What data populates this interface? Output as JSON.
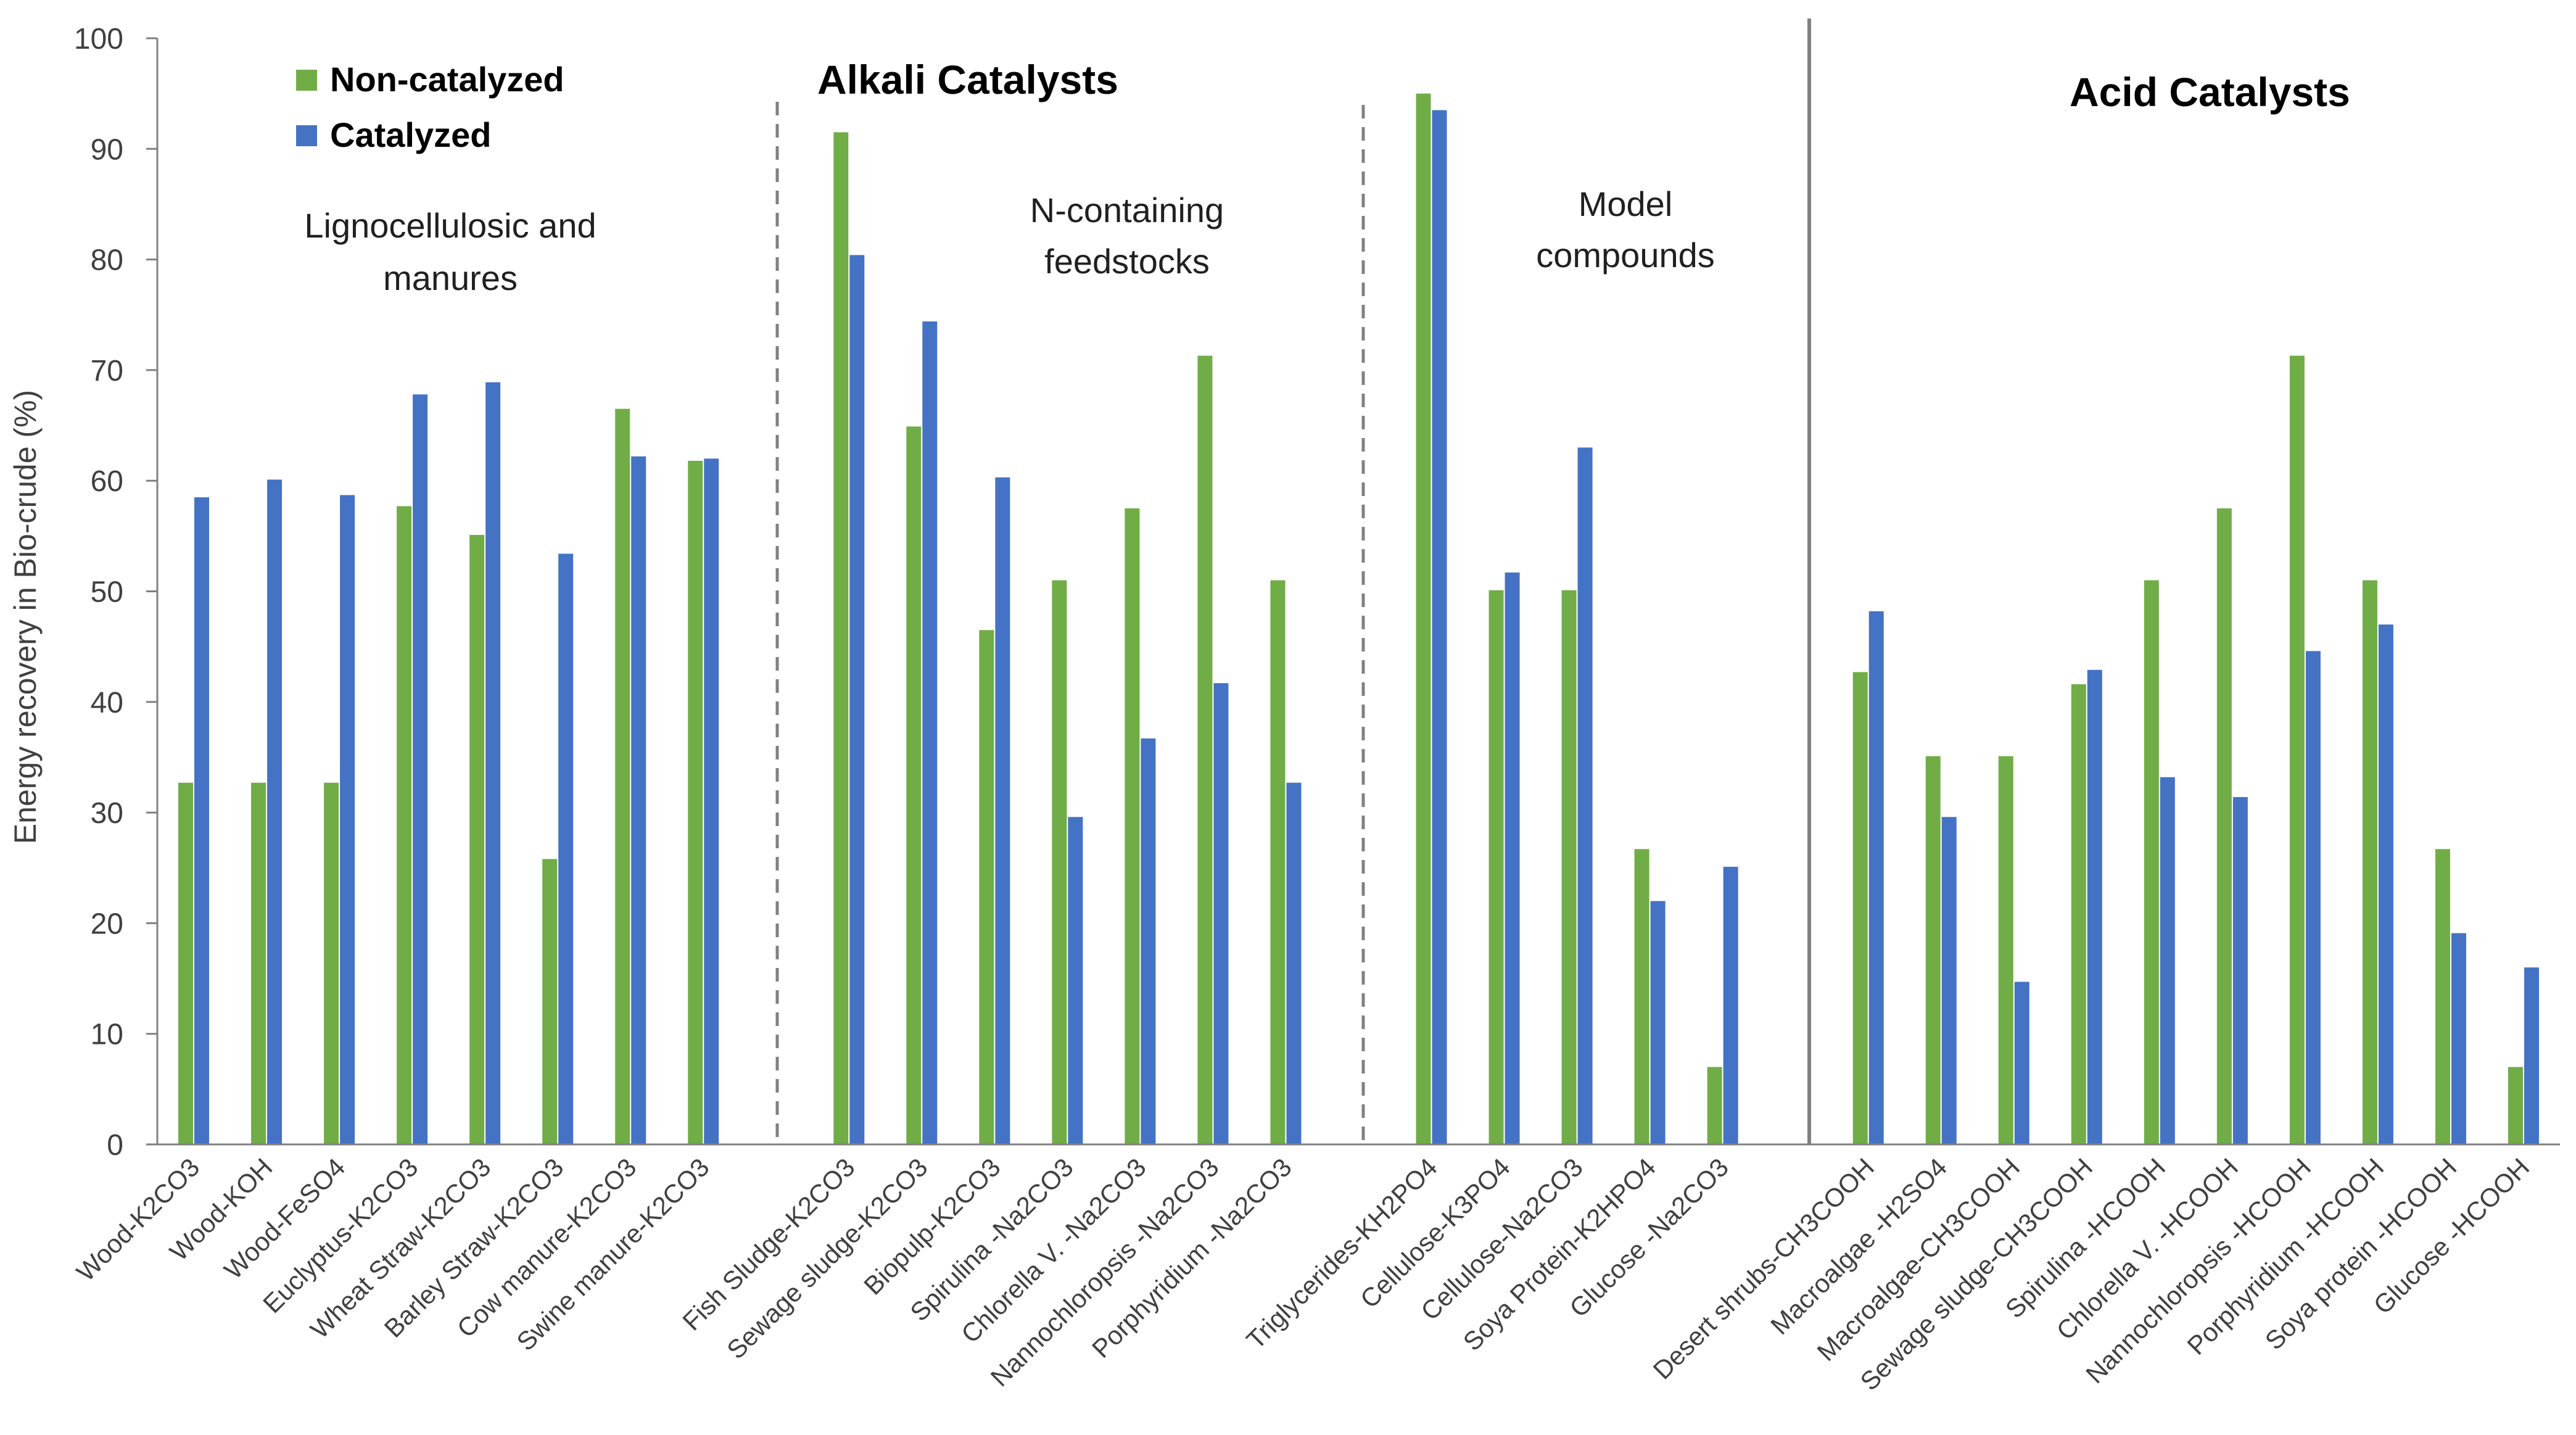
{
  "chart_data": {
    "type": "bar",
    "title": "",
    "xlabel": "",
    "ylabel": "Energy recovery in Bio-crude (%)",
    "ylim": [
      0,
      100
    ],
    "yticks": [
      0,
      10,
      20,
      30,
      40,
      50,
      60,
      70,
      80,
      90,
      100
    ],
    "legend": {
      "position": "top-left",
      "entries": [
        {
          "name": "Non-catalyzed",
          "color": "#70AD47"
        },
        {
          "name": "Catalyzed",
          "color": "#4472C4"
        }
      ]
    },
    "series": [
      {
        "name": "Non-catalyzed",
        "color": "#70AD47",
        "values": [
          32.7,
          32.7,
          32.7,
          57.7,
          55.1,
          25.8,
          66.5,
          61.8,
          null,
          91.5,
          64.9,
          46.5,
          51.0,
          57.5,
          71.3,
          51.0,
          null,
          95.0,
          50.1,
          50.1,
          26.7,
          7.0,
          null,
          42.7,
          35.1,
          35.1,
          41.6,
          51.0,
          57.5,
          71.3,
          51.0,
          26.7,
          7.0
        ]
      },
      {
        "name": "Catalyzed",
        "color": "#4472C4",
        "values": [
          58.5,
          60.1,
          58.7,
          67.8,
          68.9,
          53.4,
          62.2,
          62.0,
          null,
          80.4,
          74.4,
          60.3,
          29.6,
          36.7,
          41.7,
          32.7,
          null,
          93.5,
          51.7,
          63.0,
          22.0,
          25.1,
          null,
          48.2,
          29.6,
          14.7,
          42.9,
          33.2,
          31.4,
          44.6,
          47.0,
          19.1,
          16.0
        ]
      }
    ],
    "categories": [
      "Wood-K2CO3",
      "Wood-KOH",
      "Wood-FeSO4",
      "Euclyptus-K2CO3",
      "Wheat Straw-K2CO3",
      "Barley Straw-K2CO3",
      "Cow manure-K2CO3",
      "Swine manure-K2CO3",
      "",
      "Fish Sludge-K2CO3",
      "Sewage sludge-K2CO3",
      "Biopulp-K2CO3",
      "Spirulina -Na2CO3",
      "Chlorella V. -Na2CO3",
      "Nannochloropsis -Na2CO3",
      "Porphyridium -Na2CO3",
      "",
      "Triglycerides-KH2PO4",
      "Cellulose-K3PO4",
      "Cellulose-Na2CO3",
      "Soya Protein-K2HPO4",
      "Glucose -Na2CO3",
      "",
      "Desert shrubs-CH3COOH",
      "Macroalgae -H2SO4",
      "Macroalgae-CH3COOH",
      "Sewage sludge-CH3COOH",
      "Spirulina -HCOOH",
      "Chlorella V. -HCOOH",
      "Nannochloropsis -HCOOH",
      "Porphyridium -HCOOH",
      "Soya protein -HCOOH",
      "Glucose -HCOOH"
    ],
    "annotations": {
      "alkali_heading": "Alkali Catalysts",
      "acid_heading": "Acid Catalysts",
      "group1_line1": "Lignocellulosic and",
      "group1_line2": "manures",
      "group2_line1": "N-containing",
      "group2_line2": "feedstocks",
      "group3_line1": "Model",
      "group3_line2": "compounds"
    }
  }
}
